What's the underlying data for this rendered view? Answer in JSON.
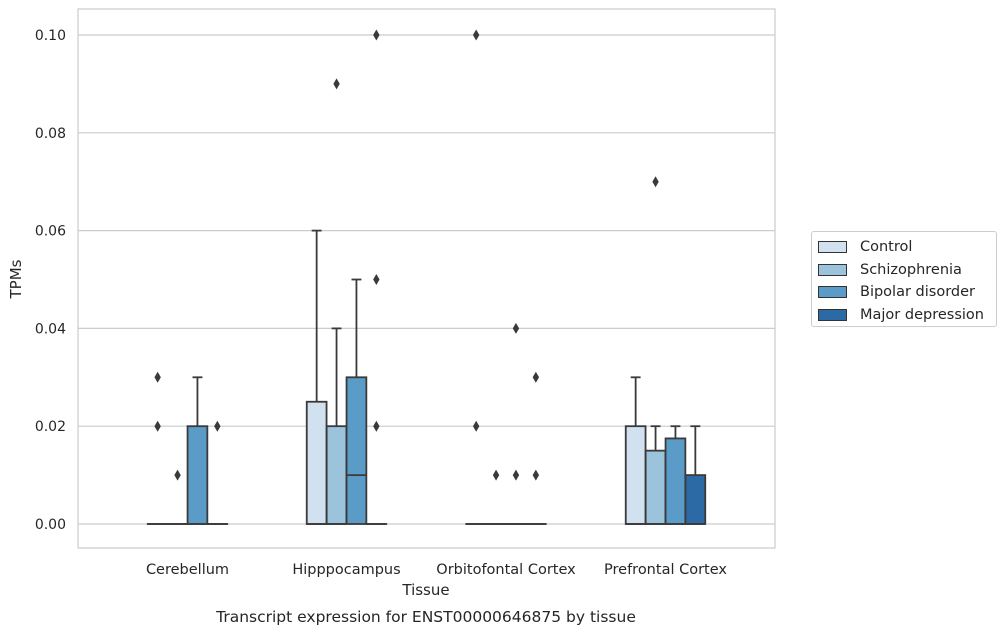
{
  "chart_data": {
    "type": "box",
    "title": "Transcript expression for ENST00000646875 by tissue",
    "xlabel": "Tissue",
    "ylabel": "TPMs",
    "categories": [
      "Cerebellum",
      "Hipppocampus",
      "Orbitofontal Cortex",
      "Prefrontal Cortex"
    ],
    "ylim": [
      -0.005,
      0.105
    ],
    "yticks": [
      "0.00",
      "0.02",
      "0.04",
      "0.06",
      "0.08",
      "0.10"
    ],
    "ytick_values": [
      0,
      0.02,
      0.04,
      0.06,
      0.08,
      0.1
    ],
    "grid": true,
    "legend_position": "right",
    "series": [
      {
        "name": "Control",
        "color": "#d1e1ef",
        "boxes": [
          {
            "q1": 0,
            "median": 0,
            "q3": 0,
            "whisker_low": 0,
            "whisker_high": 0,
            "outliers": [
              0.03,
              0.02
            ]
          },
          {
            "q1": 0,
            "median": 0,
            "q3": 0.025,
            "whisker_low": 0,
            "whisker_high": 0.06,
            "outliers": []
          },
          {
            "q1": 0,
            "median": 0,
            "q3": 0,
            "whisker_low": 0,
            "whisker_high": 0,
            "outliers": [
              0.1,
              0.02
            ]
          },
          {
            "q1": 0,
            "median": 0,
            "q3": 0.02,
            "whisker_low": 0,
            "whisker_high": 0.03,
            "outliers": []
          }
        ]
      },
      {
        "name": "Schizophrenia",
        "color": "#9cc3dc",
        "boxes": [
          {
            "q1": 0,
            "median": 0,
            "q3": 0,
            "whisker_low": 0,
            "whisker_high": 0,
            "outliers": [
              0.01
            ]
          },
          {
            "q1": 0,
            "median": 0,
            "q3": 0.02,
            "whisker_low": 0,
            "whisker_high": 0.04,
            "outliers": [
              0.09
            ]
          },
          {
            "q1": 0,
            "median": 0,
            "q3": 0,
            "whisker_low": 0,
            "whisker_high": 0,
            "outliers": [
              0.01
            ]
          },
          {
            "q1": 0,
            "median": 0,
            "q3": 0.015,
            "whisker_low": 0,
            "whisker_high": 0.02,
            "outliers": [
              0.07
            ]
          }
        ]
      },
      {
        "name": "Bipolar disorder",
        "color": "#5b9bc7",
        "boxes": [
          {
            "q1": 0,
            "median": 0,
            "q3": 0.02,
            "whisker_low": 0,
            "whisker_high": 0.03,
            "outliers": []
          },
          {
            "q1": 0,
            "median": 0.01,
            "q3": 0.03,
            "whisker_low": 0,
            "whisker_high": 0.05,
            "outliers": []
          },
          {
            "q1": 0,
            "median": 0,
            "q3": 0,
            "whisker_low": 0,
            "whisker_high": 0,
            "outliers": [
              0.04,
              0.01
            ]
          },
          {
            "q1": 0,
            "median": 0,
            "q3": 0.0175,
            "whisker_low": 0,
            "whisker_high": 0.02,
            "outliers": []
          }
        ]
      },
      {
        "name": "Major depression",
        "color": "#2c6aa6",
        "boxes": [
          {
            "q1": 0,
            "median": 0,
            "q3": 0,
            "whisker_low": 0,
            "whisker_high": 0,
            "outliers": [
              0.02
            ]
          },
          {
            "q1": 0,
            "median": 0,
            "q3": 0,
            "whisker_low": 0,
            "whisker_high": 0,
            "outliers": [
              0.1,
              0.05,
              0.02
            ]
          },
          {
            "q1": 0,
            "median": 0,
            "q3": 0,
            "whisker_low": 0,
            "whisker_high": 0,
            "outliers": [
              0.03,
              0.01
            ]
          },
          {
            "q1": 0,
            "median": 0,
            "q3": 0.01,
            "whisker_low": 0,
            "whisker_high": 0.02,
            "outliers": []
          }
        ]
      }
    ]
  }
}
